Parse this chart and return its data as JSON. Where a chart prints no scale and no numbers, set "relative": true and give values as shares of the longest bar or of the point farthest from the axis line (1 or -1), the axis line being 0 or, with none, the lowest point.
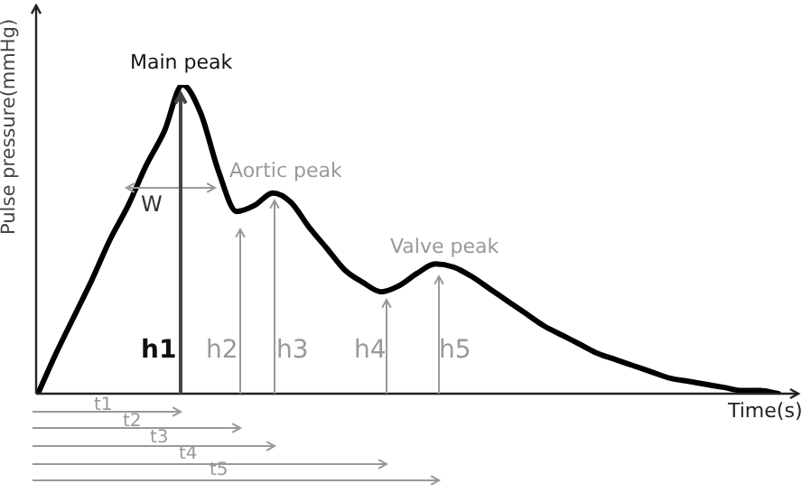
{
  "chart_data": {
    "type": "line",
    "relative": true,
    "xlabel": "Time(s)",
    "ylabel": "Pulse pressure(mmHg)",
    "categories": [
      null,
      null,
      null,
      null,
      null,
      null,
      null,
      null,
      null,
      null,
      null,
      null,
      null,
      null,
      null,
      null,
      null,
      null,
      null,
      null,
      null,
      null,
      null,
      null,
      null,
      null,
      null,
      null,
      null,
      null,
      null,
      null,
      null,
      null,
      null,
      null,
      null,
      null,
      null,
      null,
      null,
      null
    ],
    "series": [
      {
        "color": "#000000",
        "values": [
          0,
          0.13,
          0.25,
          0.37,
          0.5,
          0.61,
          0.74,
          0.85,
          1,
          0.91,
          0.72,
          0.59,
          0.61,
          0.65,
          0.62,
          0.54,
          0.47,
          0.4,
          0.36,
          0.33,
          0.35,
          0.39,
          0.42,
          0.41,
          0.38,
          0.34,
          0.3,
          0.26,
          0.22,
          0.19,
          0.16,
          0.13,
          0.11,
          0.09,
          0.07,
          0.05,
          0.04,
          0.03,
          0.02,
          0.01,
          0.01,
          0
        ]
      }
    ],
    "annotations": [
      "Main peak",
      "Aortic peak",
      "Valve peak",
      "W",
      "h1",
      "h2",
      "h3",
      "h4",
      "h5",
      "t1",
      "t2",
      "t3",
      "t4",
      "t5"
    ],
    "legend": false,
    "marker": "none",
    "line_style": "solid"
  }
}
